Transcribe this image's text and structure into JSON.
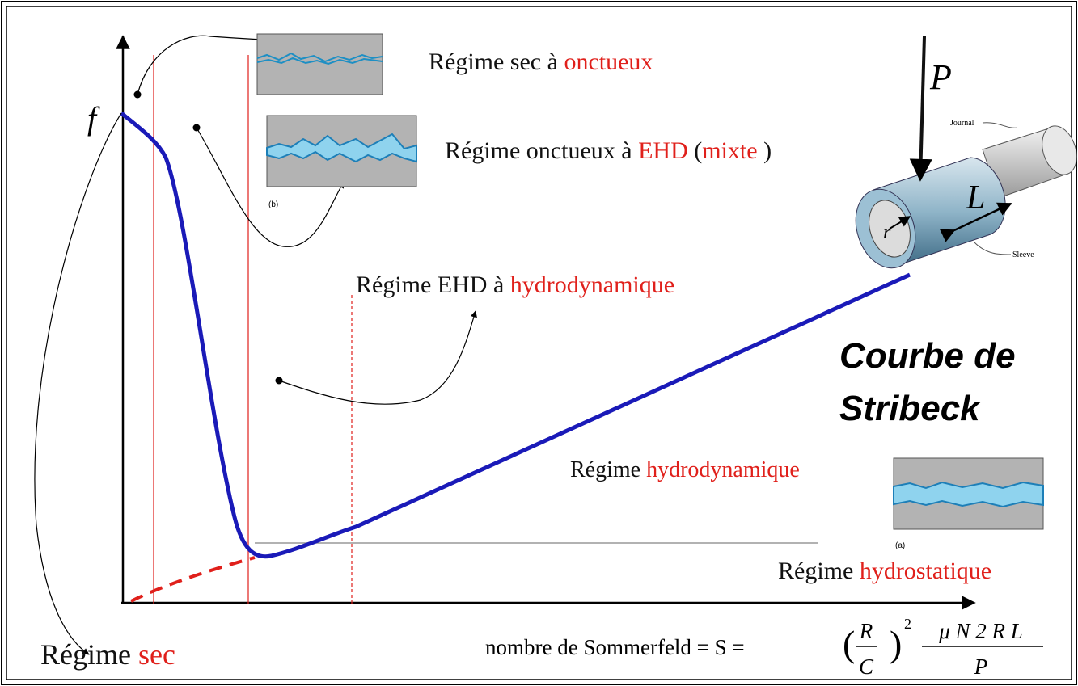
{
  "axis": {
    "y_label": "f"
  },
  "regimes": [
    {
      "parts": [
        {
          "text": "Régime sec à ",
          "color": "#111111"
        },
        {
          "text": "onctueux",
          "color": "#e0201b"
        }
      ]
    },
    {
      "parts": [
        {
          "text": "Régime onctueux à ",
          "color": "#111111"
        },
        {
          "text": "EHD",
          "color": "#e0201b"
        },
        {
          "text": " (",
          "color": "#111111"
        },
        {
          "text": "mixte",
          "color": "#e0201b"
        },
        {
          "text": " )",
          "color": "#111111"
        }
      ]
    },
    {
      "parts": [
        {
          "text": "Régime EHD à ",
          "color": "#111111"
        },
        {
          "text": "hydrodynamique",
          "color": "#e0201b"
        }
      ]
    },
    {
      "parts": [
        {
          "text": "Régime ",
          "color": "#111111"
        },
        {
          "text": "hydrodynamique",
          "color": "#e0201b"
        }
      ]
    },
    {
      "parts": [
        {
          "text": "Régime ",
          "color": "#111111"
        },
        {
          "text": "hydrostatique",
          "color": "#e0201b"
        }
      ]
    },
    {
      "parts": [
        {
          "text": "Régime ",
          "color": "#111111"
        },
        {
          "text": "sec",
          "color": "#e0201b"
        }
      ]
    }
  ],
  "title": [
    "Courbe de",
    "Stribeck"
  ],
  "insets": {
    "b": "(b)",
    "a": "(a)"
  },
  "bearing": {
    "load": "P",
    "length": "L",
    "radius": "r",
    "journal": "Journal",
    "sleeve": "Sleeve"
  },
  "formula": {
    "lhs": "nombre de Sommerfeld = S =",
    "ratio_numerator": "R",
    "ratio_denominator": "C",
    "exponent": "2",
    "numerator": "μ N 2 R L",
    "denominator": "P"
  }
}
